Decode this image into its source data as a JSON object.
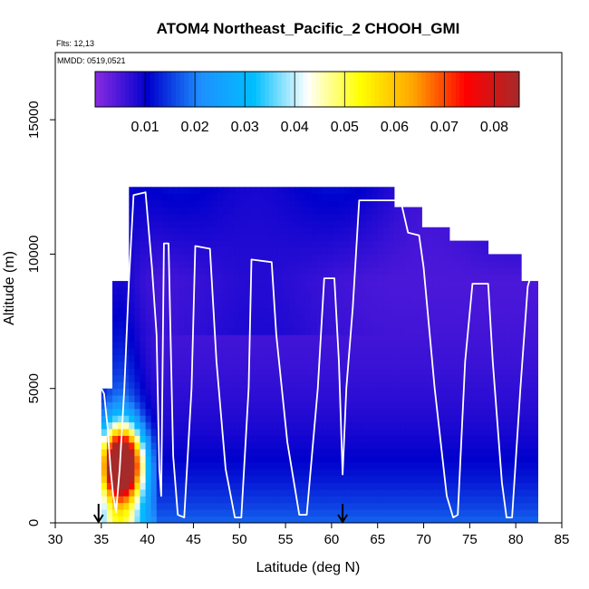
{
  "chart_data": {
    "type": "heatmap",
    "title": "ATOM4 Northeast_Pacific_2 CHOOH_GMI",
    "xlabel": "Latitude (deg N)",
    "ylabel": "Altitude (m)",
    "annotations": [
      "Flts: 12,13",
      "MMDD: 0519,0521"
    ],
    "xlim": [
      30,
      85
    ],
    "ylim": [
      0,
      17500
    ],
    "xticks": [
      "30",
      "35",
      "40",
      "45",
      "50",
      "55",
      "60",
      "65",
      "70",
      "75",
      "80",
      "85"
    ],
    "yticks": [
      "0",
      "5000",
      "10000",
      "15000"
    ],
    "colorbar": {
      "vmin": 0.0,
      "vmax": 0.085,
      "ticks": [
        "0.01",
        "0.02",
        "0.03",
        "0.04",
        "0.05",
        "0.06",
        "0.07",
        "0.08"
      ],
      "colors": [
        "#8a2be2",
        "#0000cd",
        "#1e90ff",
        "#00bfff",
        "#ffffff",
        "#ffff00",
        "#ffa500",
        "#ff0000",
        "#a52a2a"
      ]
    },
    "markers": [
      34.7,
      61.2
    ],
    "flight_track": [
      [
        35.0,
        5000
      ],
      [
        35.3,
        4800
      ],
      [
        35.7,
        3500
      ],
      [
        36.0,
        2000
      ],
      [
        36.3,
        1000
      ],
      [
        36.6,
        400
      ],
      [
        37.0,
        2000
      ],
      [
        37.5,
        5000
      ],
      [
        38.0,
        9000
      ],
      [
        38.5,
        12200
      ],
      [
        39.8,
        12300
      ],
      [
        40.5,
        9500
      ],
      [
        41.0,
        7000
      ],
      [
        41.3,
        2000
      ],
      [
        41.5,
        1000
      ],
      [
        41.8,
        10400
      ],
      [
        42.3,
        10400
      ],
      [
        42.8,
        2500
      ],
      [
        43.3,
        300
      ],
      [
        44.0,
        200
      ],
      [
        44.8,
        5000
      ],
      [
        45.2,
        10300
      ],
      [
        46.8,
        10200
      ],
      [
        47.5,
        6000
      ],
      [
        48.5,
        2000
      ],
      [
        49.5,
        200
      ],
      [
        50.2,
        200
      ],
      [
        51.0,
        5000
      ],
      [
        51.3,
        9800
      ],
      [
        53.5,
        9700
      ],
      [
        54.0,
        7000
      ],
      [
        55.2,
        3000
      ],
      [
        56.5,
        300
      ],
      [
        57.3,
        300
      ],
      [
        58.5,
        5000
      ],
      [
        59.2,
        9100
      ],
      [
        60.3,
        9100
      ],
      [
        60.8,
        6000
      ],
      [
        61.2,
        1800
      ],
      [
        61.6,
        5000
      ],
      [
        62.3,
        8000
      ],
      [
        63.0,
        12000
      ],
      [
        67.5,
        12000
      ],
      [
        68.3,
        10800
      ],
      [
        69.5,
        10700
      ],
      [
        70.0,
        9500
      ],
      [
        71.2,
        5000
      ],
      [
        72.5,
        1000
      ],
      [
        73.2,
        200
      ],
      [
        73.7,
        300
      ],
      [
        74.5,
        6000
      ],
      [
        75.3,
        8900
      ],
      [
        77.0,
        8900
      ],
      [
        77.5,
        6000
      ],
      [
        78.5,
        1500
      ],
      [
        79.0,
        200
      ],
      [
        79.6,
        200
      ],
      [
        80.5,
        5000
      ],
      [
        81.3,
        8800
      ],
      [
        82.0,
        9600
      ]
    ]
  }
}
